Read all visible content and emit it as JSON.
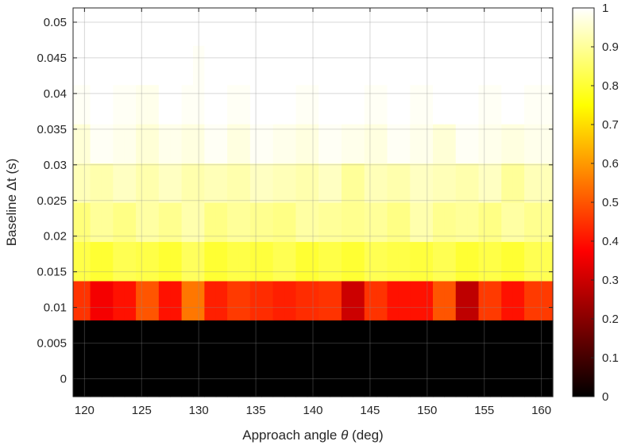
{
  "chart_data": {
    "type": "heatmap",
    "xlabel_prefix": "Approach angle ",
    "xlabel_symbol": "θ",
    "xlabel_suffix": " (deg)",
    "ylabel": "Baseline Δt (s)",
    "x": [
      120,
      121,
      122,
      123,
      124,
      125,
      126,
      127,
      128,
      129,
      130,
      131,
      132,
      133,
      134,
      135,
      136,
      137,
      138,
      139,
      140,
      141,
      142,
      143,
      144,
      145,
      146,
      147,
      148,
      149,
      150,
      151,
      152,
      153,
      154,
      155,
      156,
      157,
      158,
      159,
      160
    ],
    "y": [
      0,
      0.0055,
      0.011,
      0.0165,
      0.022,
      0.0275,
      0.033,
      0.0385,
      0.044,
      0.0495
    ],
    "xlim": [
      119,
      161
    ],
    "ylim": [
      -0.0025,
      0.052
    ],
    "xticks": [
      120,
      125,
      130,
      135,
      140,
      145,
      150,
      155,
      160
    ],
    "yticks": [
      0,
      0.005,
      0.01,
      0.015,
      0.02,
      0.025,
      0.03,
      0.035,
      0.04,
      0.045,
      0.05
    ],
    "xtick_labels": [
      "120",
      "125",
      "130",
      "135",
      "140",
      "145",
      "150",
      "155",
      "160"
    ],
    "ytick_labels": [
      "0",
      "0.005",
      "0.01",
      "0.015",
      "0.02",
      "0.025",
      "0.03",
      "0.035",
      "0.04",
      "0.045",
      "0.05"
    ],
    "grid": true,
    "colormap": "hot",
    "clim": [
      0,
      1
    ],
    "colorbar_ticks": [
      0,
      0.1,
      0.2,
      0.3,
      0.4,
      0.5,
      0.6,
      0.7,
      0.8,
      0.9,
      1
    ],
    "colorbar_tick_labels": [
      "0",
      "0.1",
      "0.2",
      "0.3",
      "0.4",
      "0.5",
      "0.6",
      "0.7",
      "0.8",
      "0.9",
      "1"
    ],
    "values": [
      [
        0,
        0,
        0,
        0,
        0,
        0,
        0,
        0,
        0,
        0,
        0,
        0,
        0,
        0,
        0,
        0,
        0,
        0,
        0,
        0,
        0,
        0,
        0,
        0,
        0,
        0,
        0,
        0,
        0,
        0,
        0,
        0,
        0,
        0,
        0,
        0,
        0,
        0,
        0,
        0,
        0
      ],
      [
        0,
        0,
        0,
        0,
        0,
        0,
        0,
        0,
        0,
        0,
        0,
        0,
        0,
        0,
        0,
        0,
        0,
        0,
        0,
        0,
        0,
        0,
        0,
        0,
        0,
        0,
        0,
        0,
        0,
        0,
        0,
        0,
        0,
        0,
        0,
        0,
        0,
        0,
        0,
        0,
        0
      ],
      [
        0.45,
        0.36,
        0.36,
        0.4,
        0.4,
        0.5,
        0.5,
        0.4,
        0.4,
        0.55,
        0.55,
        0.42,
        0.42,
        0.46,
        0.46,
        0.44,
        0.44,
        0.42,
        0.42,
        0.44,
        0.44,
        0.45,
        0.45,
        0.3,
        0.3,
        0.45,
        0.45,
        0.4,
        0.4,
        0.4,
        0.4,
        0.5,
        0.5,
        0.28,
        0.28,
        0.46,
        0.46,
        0.4,
        0.4,
        0.46,
        0.46
      ],
      [
        0.82,
        0.8,
        0.8,
        0.83,
        0.83,
        0.82,
        0.82,
        0.8,
        0.8,
        0.84,
        0.84,
        0.8,
        0.8,
        0.82,
        0.82,
        0.81,
        0.81,
        0.83,
        0.83,
        0.8,
        0.8,
        0.82,
        0.82,
        0.8,
        0.8,
        0.83,
        0.83,
        0.82,
        0.82,
        0.81,
        0.81,
        0.83,
        0.83,
        0.8,
        0.8,
        0.82,
        0.82,
        0.8,
        0.8,
        0.83,
        0.83
      ],
      [
        0.87,
        0.9,
        0.9,
        0.88,
        0.88,
        0.91,
        0.91,
        0.89,
        0.89,
        0.92,
        0.92,
        0.88,
        0.88,
        0.9,
        0.9,
        0.89,
        0.89,
        0.88,
        0.88,
        0.91,
        0.91,
        0.9,
        0.9,
        0.89,
        0.89,
        0.9,
        0.9,
        0.88,
        0.88,
        0.92,
        0.92,
        0.89,
        0.89,
        0.9,
        0.9,
        0.88,
        0.88,
        0.91,
        0.91,
        0.89,
        0.89
      ],
      [
        0.93,
        0.92,
        0.92,
        0.94,
        0.94,
        0.92,
        0.92,
        0.94,
        0.94,
        0.92,
        0.92,
        0.93,
        0.93,
        0.92,
        0.92,
        0.94,
        0.94,
        0.93,
        0.93,
        0.92,
        0.92,
        0.94,
        0.94,
        0.9,
        0.9,
        0.93,
        0.93,
        0.92,
        0.92,
        0.94,
        0.94,
        0.93,
        0.93,
        0.92,
        0.92,
        0.94,
        0.94,
        0.9,
        0.9,
        0.93,
        0.93
      ],
      [
        0.96,
        0.99,
        0.99,
        0.98,
        0.98,
        0.96,
        0.96,
        0.98,
        0.98,
        0.97,
        0.97,
        0.99,
        0.99,
        0.97,
        0.97,
        0.99,
        0.99,
        0.98,
        0.98,
        0.97,
        0.97,
        0.99,
        0.99,
        0.98,
        0.98,
        0.97,
        0.97,
        0.99,
        0.99,
        0.98,
        0.98,
        0.96,
        0.96,
        0.99,
        0.99,
        0.98,
        0.98,
        0.97,
        0.97,
        0.98,
        0.98
      ],
      [
        0.99,
        1.0,
        1.0,
        0.99,
        0.99,
        0.98,
        0.98,
        1.0,
        1.0,
        0.99,
        0.99,
        1.0,
        1.0,
        0.99,
        0.99,
        1.0,
        1.0,
        1.0,
        1.0,
        0.99,
        0.99,
        1.0,
        1.0,
        1.0,
        1.0,
        0.99,
        0.99,
        1.0,
        1.0,
        0.99,
        0.99,
        1.0,
        1.0,
        1.0,
        1.0,
        0.99,
        0.99,
        1.0,
        1.0,
        0.99,
        0.99
      ],
      [
        1.0,
        1.0,
        1.0,
        1.0,
        1.0,
        1.0,
        1.0,
        1.0,
        1.0,
        1.0,
        0.99,
        1.0,
        1.0,
        1.0,
        1.0,
        1.0,
        1.0,
        1.0,
        1.0,
        1.0,
        1.0,
        1.0,
        1.0,
        1.0,
        1.0,
        1.0,
        1.0,
        1.0,
        1.0,
        1.0,
        1.0,
        1.0,
        1.0,
        1.0,
        1.0,
        1.0,
        1.0,
        1.0,
        1.0,
        1.0,
        1.0
      ],
      [
        1.0,
        1.0,
        1.0,
        1.0,
        1.0,
        1.0,
        1.0,
        1.0,
        1.0,
        1.0,
        1.0,
        1.0,
        1.0,
        1.0,
        1.0,
        1.0,
        1.0,
        1.0,
        1.0,
        1.0,
        1.0,
        1.0,
        1.0,
        1.0,
        1.0,
        1.0,
        1.0,
        1.0,
        1.0,
        1.0,
        1.0,
        1.0,
        1.0,
        1.0,
        1.0,
        1.0,
        1.0,
        1.0,
        1.0,
        1.0,
        1.0
      ]
    ]
  }
}
